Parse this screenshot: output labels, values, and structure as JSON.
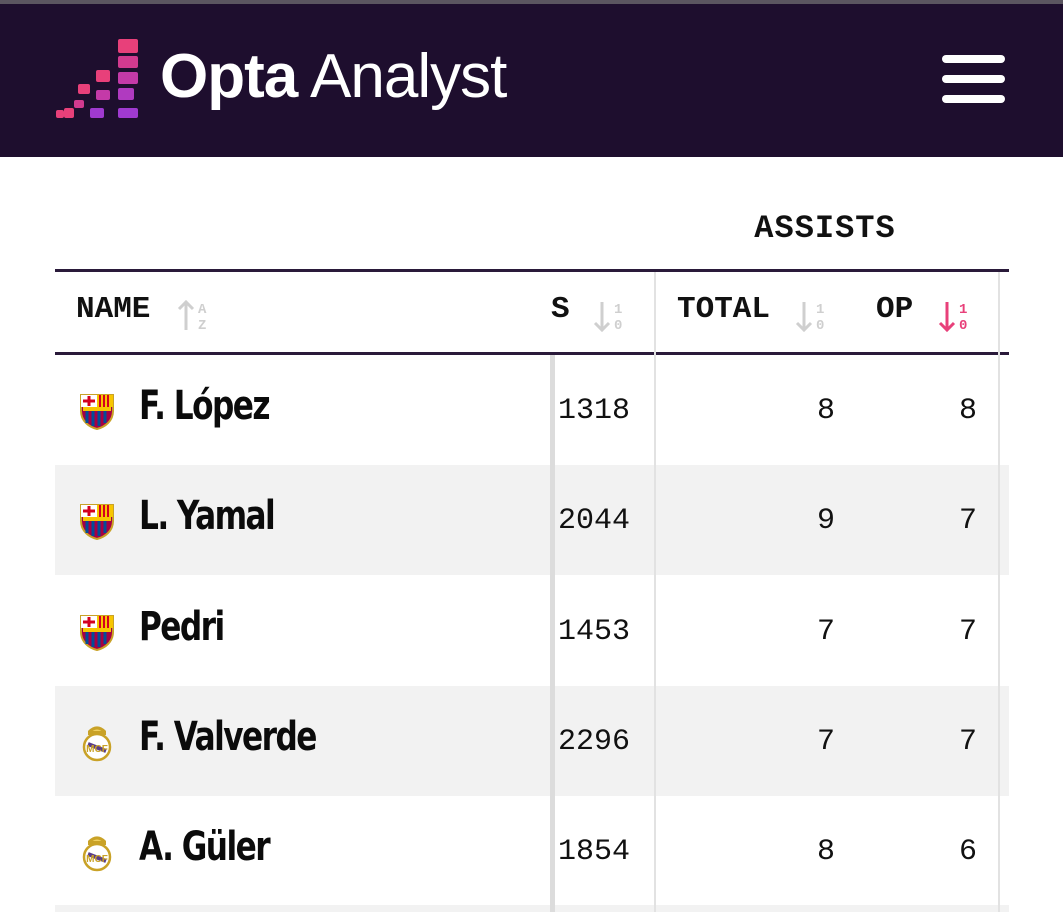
{
  "header": {
    "brand_bold": "Opta",
    "brand_light": "Analyst",
    "menu_icon": "hamburger-menu-icon",
    "colors": {
      "background": "#1e0e2e",
      "accent_pink": "#e8407a",
      "accent_purple": "#a03ad0"
    }
  },
  "table": {
    "group_label": "ASSISTS",
    "columns": {
      "name": "NAME",
      "minutes_fragment": "S",
      "total": "TOTAL",
      "op": "OP"
    },
    "sort_active_color": "#e8407a",
    "rows": [
      {
        "club": "Barcelona",
        "crest_icon": "barcelona-crest-icon",
        "name": "F. López",
        "minutes": "1318",
        "total": "8",
        "op": "8"
      },
      {
        "club": "Barcelona",
        "crest_icon": "barcelona-crest-icon",
        "name": "L. Yamal",
        "minutes": "2044",
        "total": "9",
        "op": "7"
      },
      {
        "club": "Barcelona",
        "crest_icon": "barcelona-crest-icon",
        "name": "Pedri",
        "minutes": "1453",
        "total": "7",
        "op": "7"
      },
      {
        "club": "Real Madrid",
        "crest_icon": "real-madrid-crest-icon",
        "name": "F. Valverde",
        "minutes": "2296",
        "total": "7",
        "op": "7"
      },
      {
        "club": "Real Madrid",
        "crest_icon": "real-madrid-crest-icon",
        "name": "A. Güler",
        "minutes": "1854",
        "total": "8",
        "op": "6"
      }
    ]
  }
}
